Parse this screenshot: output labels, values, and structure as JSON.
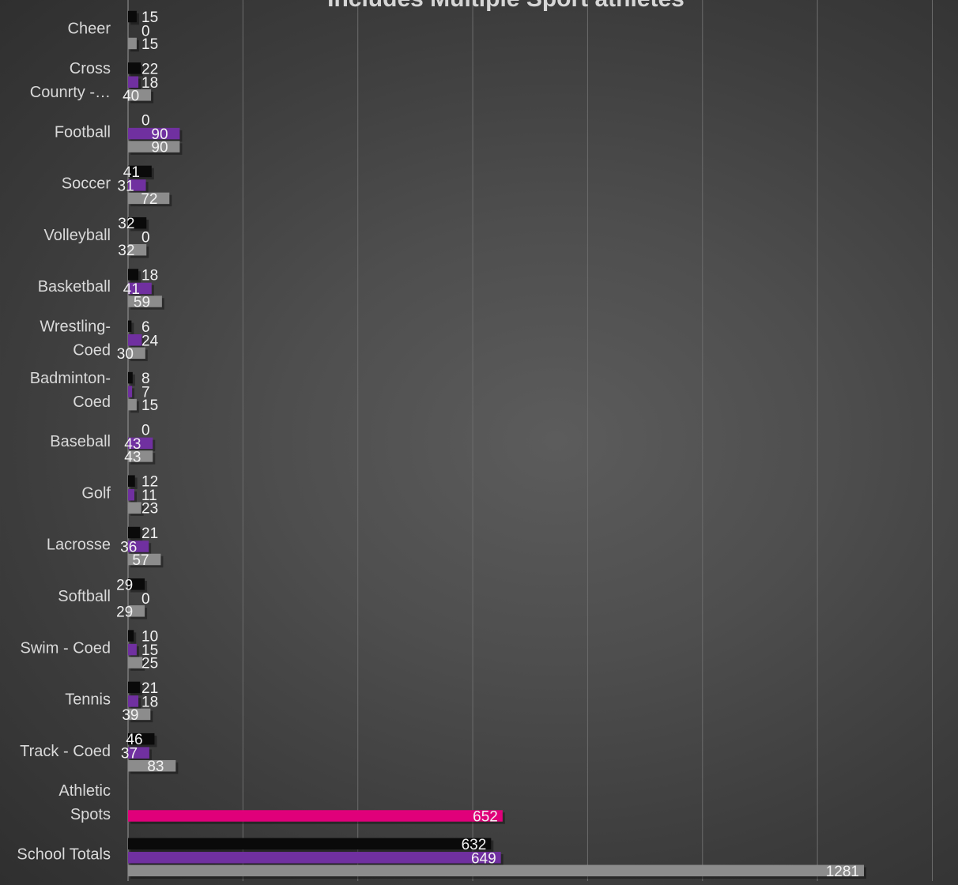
{
  "chart_data": {
    "type": "bar",
    "orientation": "horizontal",
    "title": "Includes Multiple Sport athletes",
    "categories": [
      "Cheer",
      "Cross Counrty -…",
      "Football",
      "Soccer",
      "Volleyball",
      "Basketball",
      "Wrestling-Coed",
      "Badminton-Coed",
      "Baseball",
      "Golf",
      "Lacrosse",
      "Softball",
      "Swim - Coed",
      "Tennis",
      "Track - Coed",
      "Athletic Spots",
      "School Totals"
    ],
    "category_lines": [
      [
        "Cheer"
      ],
      [
        "Cross",
        "Counrty -…"
      ],
      [
        "Football"
      ],
      [
        "Soccer"
      ],
      [
        "Volleyball"
      ],
      [
        "Basketball"
      ],
      [
        "Wrestling-",
        "Coed"
      ],
      [
        "Badminton-",
        "Coed"
      ],
      [
        "Baseball"
      ],
      [
        "Golf"
      ],
      [
        "Lacrosse"
      ],
      [
        "Softball"
      ],
      [
        "Swim - Coed"
      ],
      [
        "Tennis"
      ],
      [
        "Track - Coed"
      ],
      [
        "Athletic",
        "Spots"
      ],
      [
        "School Totals"
      ]
    ],
    "series": [
      {
        "color": "#0a0a0a",
        "values": [
          15,
          22,
          0,
          41,
          32,
          18,
          6,
          8,
          0,
          12,
          21,
          29,
          10,
          21,
          46,
          null,
          632
        ]
      },
      {
        "color": "#7030a0",
        "values": [
          0,
          18,
          90,
          31,
          0,
          41,
          24,
          7,
          43,
          11,
          36,
          0,
          15,
          18,
          37,
          null,
          649
        ]
      },
      {
        "color": "#8c8c8c",
        "values": [
          15,
          40,
          90,
          72,
          32,
          59,
          30,
          15,
          43,
          23,
          57,
          29,
          25,
          39,
          83,
          null,
          1281
        ]
      },
      {
        "color": "#e0007a",
        "values": [
          null,
          null,
          null,
          null,
          null,
          null,
          null,
          null,
          null,
          null,
          null,
          null,
          null,
          null,
          null,
          652,
          null
        ]
      }
    ],
    "xlim": [
      0,
      1400
    ],
    "grid_step": 200,
    "grid": true,
    "data_labels": true
  }
}
